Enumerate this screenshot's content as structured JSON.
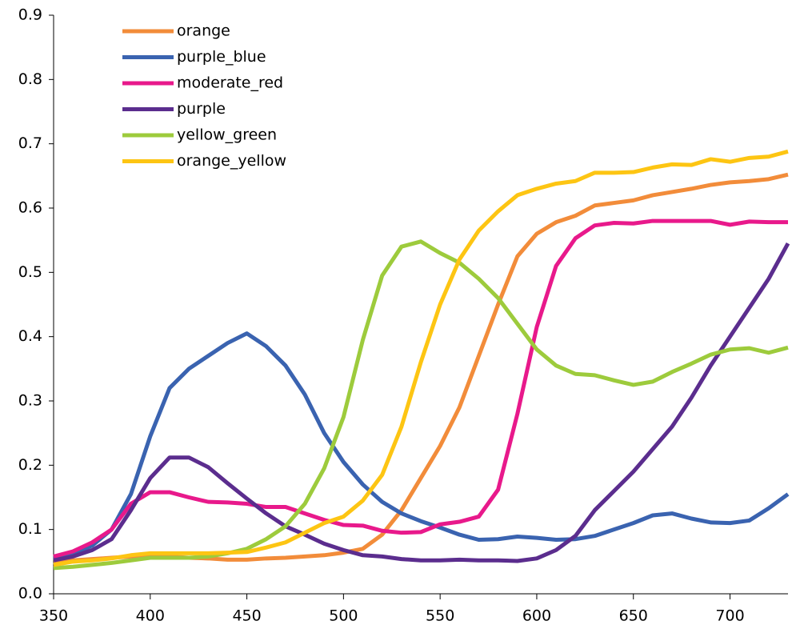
{
  "chart_data": {
    "type": "line",
    "x": [
      350,
      360,
      370,
      380,
      390,
      400,
      410,
      420,
      430,
      440,
      450,
      460,
      470,
      480,
      490,
      500,
      510,
      520,
      530,
      540,
      550,
      560,
      570,
      580,
      590,
      600,
      610,
      620,
      630,
      640,
      650,
      660,
      670,
      680,
      690,
      700,
      710,
      720,
      730
    ],
    "series": [
      {
        "name": "orange",
        "color": "#f28c3a",
        "values": [
          0.05,
          0.052,
          0.054,
          0.056,
          0.058,
          0.06,
          0.058,
          0.056,
          0.055,
          0.053,
          0.053,
          0.055,
          0.056,
          0.058,
          0.06,
          0.064,
          0.07,
          0.092,
          0.13,
          0.18,
          0.23,
          0.29,
          0.37,
          0.45,
          0.525,
          0.56,
          0.578,
          0.588,
          0.604,
          0.608,
          0.612,
          0.62,
          0.625,
          0.63,
          0.636,
          0.64,
          0.642,
          0.645,
          0.652
        ]
      },
      {
        "name": "purple_blue",
        "color": "#3a63b0",
        "values": [
          0.055,
          0.062,
          0.075,
          0.1,
          0.155,
          0.245,
          0.32,
          0.35,
          0.37,
          0.39,
          0.405,
          0.385,
          0.355,
          0.31,
          0.25,
          0.205,
          0.17,
          0.143,
          0.125,
          0.113,
          0.103,
          0.092,
          0.084,
          0.085,
          0.089,
          0.087,
          0.084,
          0.085,
          0.09,
          0.1,
          0.11,
          0.122,
          0.125,
          0.117,
          0.111,
          0.11,
          0.114,
          0.133,
          0.155
        ]
      },
      {
        "name": "moderate_red",
        "color": "#e8198b",
        "values": [
          0.058,
          0.066,
          0.08,
          0.1,
          0.14,
          0.158,
          0.158,
          0.15,
          0.143,
          0.142,
          0.14,
          0.135,
          0.135,
          0.125,
          0.115,
          0.107,
          0.106,
          0.098,
          0.095,
          0.096,
          0.108,
          0.112,
          0.12,
          0.162,
          0.28,
          0.415,
          0.51,
          0.553,
          0.573,
          0.577,
          0.576,
          0.58,
          0.58,
          0.58,
          0.58,
          0.574,
          0.579,
          0.578,
          0.578
        ]
      },
      {
        "name": "purple",
        "color": "#5b2d8e",
        "values": [
          0.052,
          0.058,
          0.068,
          0.085,
          0.13,
          0.18,
          0.212,
          0.212,
          0.197,
          0.172,
          0.148,
          0.125,
          0.105,
          0.092,
          0.078,
          0.068,
          0.06,
          0.058,
          0.054,
          0.052,
          0.052,
          0.053,
          0.052,
          0.052,
          0.051,
          0.055,
          0.068,
          0.09,
          0.13,
          0.16,
          0.19,
          0.225,
          0.26,
          0.305,
          0.355,
          0.4,
          0.445,
          0.49,
          0.545
        ]
      },
      {
        "name": "yellow_green",
        "color": "#9dcb3c",
        "values": [
          0.04,
          0.042,
          0.045,
          0.048,
          0.052,
          0.056,
          0.056,
          0.056,
          0.058,
          0.063,
          0.07,
          0.085,
          0.105,
          0.14,
          0.195,
          0.275,
          0.395,
          0.495,
          0.54,
          0.548,
          0.53,
          0.515,
          0.49,
          0.46,
          0.42,
          0.38,
          0.355,
          0.342,
          0.34,
          0.332,
          0.325,
          0.33,
          0.345,
          0.358,
          0.372,
          0.38,
          0.382,
          0.375,
          0.383
        ]
      },
      {
        "name": "orange_yellow",
        "color": "#fdc513",
        "values": [
          0.045,
          0.05,
          0.052,
          0.055,
          0.06,
          0.063,
          0.063,
          0.063,
          0.063,
          0.064,
          0.065,
          0.072,
          0.08,
          0.095,
          0.11,
          0.12,
          0.145,
          0.185,
          0.26,
          0.36,
          0.45,
          0.52,
          0.565,
          0.595,
          0.62,
          0.63,
          0.638,
          0.642,
          0.655,
          0.655,
          0.656,
          0.663,
          0.668,
          0.667,
          0.676,
          0.672,
          0.678,
          0.68,
          0.688
        ]
      }
    ],
    "xlim": [
      350,
      730
    ],
    "xticks": [
      350,
      400,
      450,
      500,
      550,
      600,
      650,
      700
    ],
    "ylim": [
      0,
      0.9
    ],
    "yticks": [
      {
        "value": 0,
        "label": "0.0"
      },
      0.1,
      0.2,
      0.3,
      0.4,
      0.5,
      0.6,
      0.7,
      0.8,
      0.9
    ],
    "grid": false,
    "legend": "upper left"
  }
}
